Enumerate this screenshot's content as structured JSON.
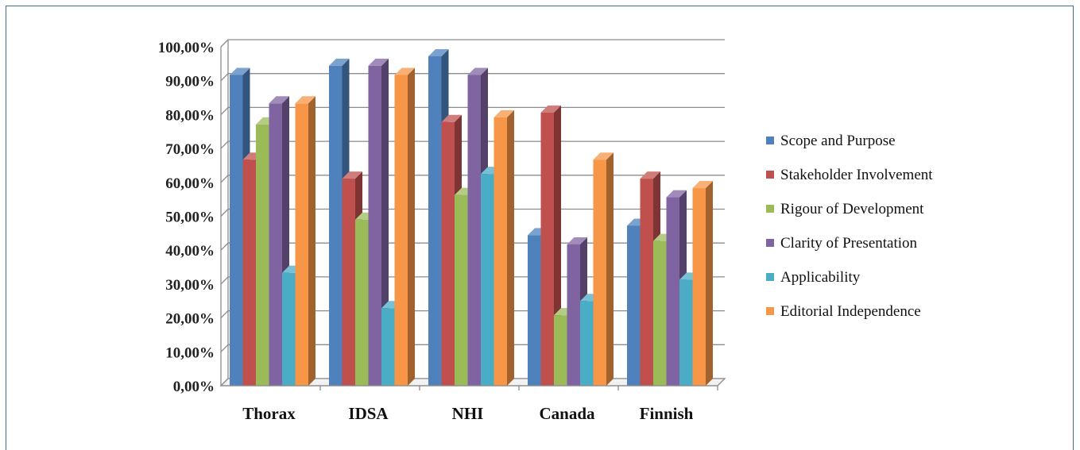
{
  "chart_data": {
    "type": "bar",
    "categories": [
      "Thorax",
      "IDSA",
      "NHI",
      "Canada",
      "Finnish"
    ],
    "series": [
      {
        "name": "Scope and Purpose",
        "color": "#4f81bd",
        "values": [
          91.7,
          94.4,
          97.2,
          44.4,
          47.2
        ]
      },
      {
        "name": "Stakeholder Involvement",
        "color": "#c0504d",
        "values": [
          66.7,
          61.1,
          77.8,
          80.6,
          61.1
        ]
      },
      {
        "name": "Rigour of Development",
        "color": "#9bbb59",
        "values": [
          77.1,
          49.0,
          56.3,
          20.8,
          42.7
        ]
      },
      {
        "name": "Clarity of Presentation",
        "color": "#8064a2",
        "values": [
          83.3,
          94.4,
          91.7,
          41.7,
          55.6
        ]
      },
      {
        "name": "Applicability",
        "color": "#4bacc6",
        "values": [
          33.3,
          22.9,
          62.5,
          25.0,
          31.3
        ]
      },
      {
        "name": "Editorial Independence",
        "color": "#f79646",
        "values": [
          83.3,
          91.7,
          79.2,
          66.7,
          58.3
        ]
      }
    ],
    "y_ticks": [
      "0,00%",
      "10,00%",
      "20,00%",
      "30,00%",
      "40,00%",
      "50,00%",
      "60,00%",
      "70,00%",
      "80,00%",
      "90,00%",
      "100,00%"
    ],
    "ylim": [
      0,
      100
    ],
    "grid": true,
    "legend_position": "right"
  }
}
